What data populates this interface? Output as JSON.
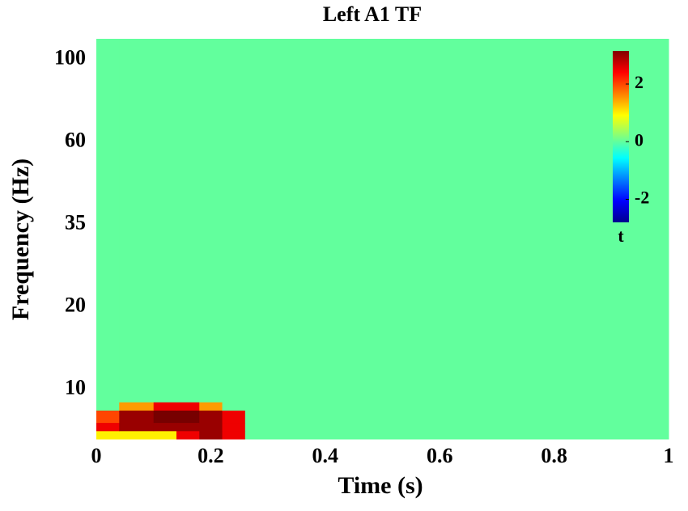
{
  "chart_data": {
    "type": "heatmap",
    "title": "Left A1 TF",
    "xlabel": "Time (s)",
    "ylabel": "Frequency (Hz)",
    "xlim": [
      0,
      1
    ],
    "xticks": [
      0,
      0.2,
      0.4,
      0.6,
      0.8,
      1
    ],
    "ylim": [
      4,
      110
    ],
    "yticks": [
      10,
      20,
      35,
      60,
      100
    ],
    "x_edges": [
      0,
      0.04,
      0.1,
      0.14,
      0.18,
      0.22,
      0.26,
      1
    ],
    "y_edges": [
      4,
      5,
      6,
      7.5,
      8.5,
      110
    ],
    "z": [
      [
        1,
        1,
        1,
        2.5,
        3,
        2.5,
        0
      ],
      [
        2.5,
        3,
        3,
        3,
        3,
        2.5,
        0
      ],
      [
        2,
        3,
        3.2,
        3.2,
        3,
        2.5,
        0
      ],
      [
        0,
        1.5,
        2.5,
        2.5,
        1.5,
        0,
        0
      ],
      [
        0,
        0,
        0,
        0,
        0,
        0,
        0
      ]
    ],
    "colormap": "jet",
    "clim": [
      -2.8,
      3.15
    ],
    "cbar_ticks": [
      -2,
      0,
      2
    ],
    "cbar_label": "t"
  }
}
